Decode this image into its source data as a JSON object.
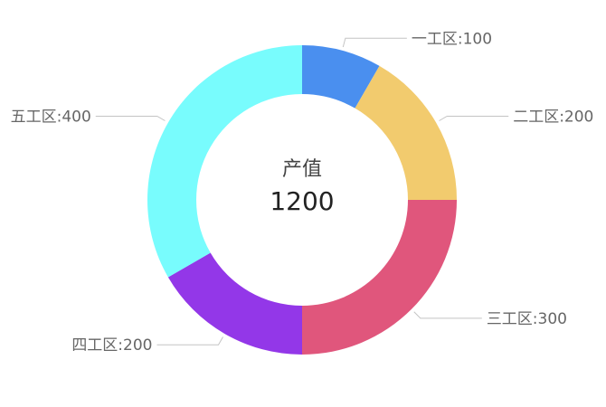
{
  "chart_data": {
    "type": "pie",
    "categories": [
      "一工区",
      "二工区",
      "三工区",
      "四工区",
      "五工区"
    ],
    "values": [
      100,
      200,
      300,
      200,
      400
    ],
    "colors": [
      "#4a8fef",
      "#f2cb6e",
      "#e0567c",
      "#9337e8",
      "#78fcfd"
    ],
    "labels": [
      "一工区:100",
      "二工区:200",
      "三工区:300",
      "四工区:200",
      "五工区:400"
    ],
    "center": {
      "title": "产值",
      "value": "1200"
    },
    "style": "donut",
    "grid": false
  }
}
